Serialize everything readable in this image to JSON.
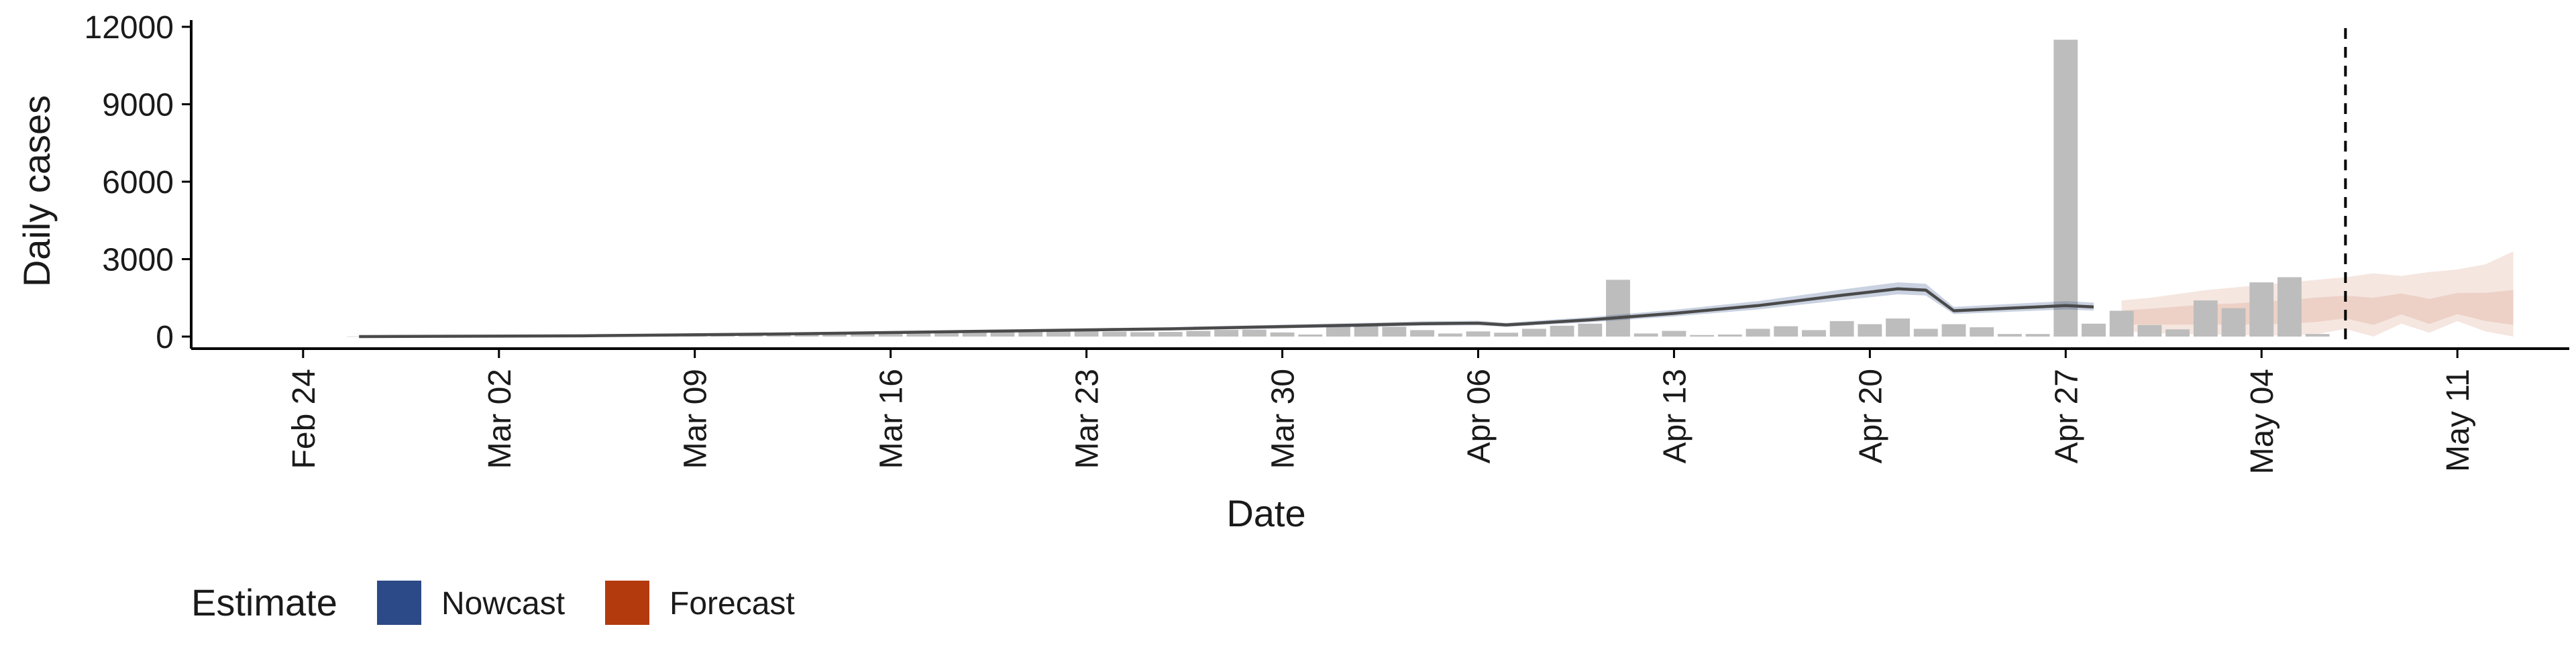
{
  "chart_data": {
    "type": "bar",
    "xlabel": "Date",
    "ylabel": "Daily cases",
    "ylim": [
      0,
      12000
    ],
    "y_ticks": [
      0,
      3000,
      6000,
      9000,
      12000
    ],
    "y_tick_labels": [
      "0",
      "3000",
      "6000",
      "9000",
      "12000"
    ],
    "x_tick_labels": [
      "Feb 24",
      "Mar 02",
      "Mar 09",
      "Mar 16",
      "Mar 23",
      "Mar 30",
      "Apr 06",
      "Apr 13",
      "Apr 20",
      "Apr 27",
      "May 04",
      "May 11"
    ],
    "x_ticks": [
      "2020-02-24",
      "2020-03-02",
      "2020-03-09",
      "2020-03-16",
      "2020-03-23",
      "2020-03-30",
      "2020-04-06",
      "2020-04-13",
      "2020-04-20",
      "2020-04-27",
      "2020-05-04",
      "2020-05-11"
    ],
    "x_range": [
      "2020-02-20",
      "2020-05-15"
    ],
    "grid": false,
    "vline_date": "2020-05-07",
    "series": [
      {
        "name": "Daily cases",
        "kind": "bar",
        "color": "#bdbdbd",
        "x": [
          "2020-02-26",
          "2020-02-27",
          "2020-02-28",
          "2020-02-29",
          "2020-03-01",
          "2020-03-02",
          "2020-03-03",
          "2020-03-04",
          "2020-03-05",
          "2020-03-06",
          "2020-03-07",
          "2020-03-08",
          "2020-03-09",
          "2020-03-10",
          "2020-03-11",
          "2020-03-12",
          "2020-03-13",
          "2020-03-14",
          "2020-03-15",
          "2020-03-16",
          "2020-03-17",
          "2020-03-18",
          "2020-03-19",
          "2020-03-20",
          "2020-03-21",
          "2020-03-22",
          "2020-03-23",
          "2020-03-24",
          "2020-03-25",
          "2020-03-26",
          "2020-03-27",
          "2020-03-28",
          "2020-03-29",
          "2020-03-30",
          "2020-03-31",
          "2020-04-01",
          "2020-04-02",
          "2020-04-03",
          "2020-04-04",
          "2020-04-05",
          "2020-04-06",
          "2020-04-07",
          "2020-04-08",
          "2020-04-09",
          "2020-04-10",
          "2020-04-11",
          "2020-04-12",
          "2020-04-13",
          "2020-04-14",
          "2020-04-15",
          "2020-04-16",
          "2020-04-17",
          "2020-04-18",
          "2020-04-19",
          "2020-04-20",
          "2020-04-21",
          "2020-04-22",
          "2020-04-23",
          "2020-04-24",
          "2020-04-25",
          "2020-04-26",
          "2020-04-27",
          "2020-04-28",
          "2020-04-29",
          "2020-04-30",
          "2020-05-01",
          "2020-05-02",
          "2020-05-03",
          "2020-05-04",
          "2020-05-05",
          "2020-05-06"
        ],
        "values": [
          5,
          5,
          6,
          8,
          10,
          12,
          15,
          18,
          22,
          28,
          35,
          42,
          50,
          60,
          70,
          80,
          95,
          110,
          130,
          150,
          160,
          170,
          180,
          190,
          200,
          210,
          220,
          190,
          170,
          180,
          220,
          260,
          270,
          160,
          80,
          400,
          450,
          380,
          250,
          120,
          200,
          150,
          300,
          420,
          500,
          2200,
          120,
          220,
          60,
          80,
          300,
          400,
          250,
          600,
          480,
          700,
          300,
          480,
          360,
          100,
          100,
          11500,
          500,
          1000,
          450,
          280,
          1400,
          1100,
          2100,
          2300,
          100
        ]
      },
      {
        "name": "Nowcast",
        "kind": "line",
        "color": "#2b4a87",
        "x": [
          "2020-02-26",
          "2020-03-05",
          "2020-03-12",
          "2020-03-19",
          "2020-03-26",
          "2020-04-02",
          "2020-04-04",
          "2020-04-06",
          "2020-04-07",
          "2020-04-10",
          "2020-04-13",
          "2020-04-16",
          "2020-04-19",
          "2020-04-21",
          "2020-04-22",
          "2020-04-23",
          "2020-04-25",
          "2020-04-27",
          "2020-04-28"
        ],
        "values": [
          0,
          30,
          100,
          200,
          300,
          450,
          500,
          520,
          450,
          650,
          900,
          1200,
          1600,
          1850,
          1800,
          1000,
          1100,
          1200,
          1150
        ]
      },
      {
        "name": "Forecast",
        "kind": "band",
        "color": "#b33a0d",
        "x": [
          "2020-04-29",
          "2020-04-30",
          "2020-05-01",
          "2020-05-02",
          "2020-05-03",
          "2020-05-04",
          "2020-05-05",
          "2020-05-06",
          "2020-05-07",
          "2020-05-08",
          "2020-05-09",
          "2020-05-10",
          "2020-05-11",
          "2020-05-12",
          "2020-05-13"
        ],
        "low": [
          200,
          150,
          100,
          80,
          60,
          50,
          40,
          100,
          300,
          0,
          500,
          150,
          600,
          200,
          0
        ],
        "high": [
          1400,
          1500,
          1650,
          1800,
          1900,
          2000,
          2100,
          2200,
          2300,
          2450,
          2350,
          2500,
          2600,
          2800,
          3300
        ],
        "mid": [
          800,
          850,
          900,
          950,
          950,
          1000,
          1050,
          1150,
          1200,
          1000,
          1300,
          900,
          1200,
          1100,
          1000
        ]
      }
    ],
    "legend": {
      "title": "Estimate",
      "position": "bottom-left",
      "items": [
        {
          "label": "Nowcast",
          "color": "#2b4a87"
        },
        {
          "label": "Forecast",
          "color": "#b33a0d"
        }
      ]
    }
  }
}
